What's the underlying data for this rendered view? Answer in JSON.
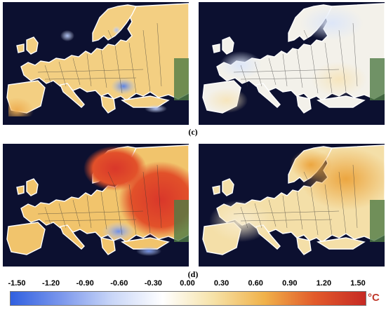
{
  "panels": {
    "c": {
      "label": "(c)",
      "left": {
        "scheme": "mixed-warm-with-cool-spots",
        "sea_color": "#0c1030",
        "land_color": "#f3cf82"
      },
      "right": {
        "scheme": "near-neutral-cool",
        "sea_color": "#0c1030",
        "land_color": "#f2f1ec"
      }
    },
    "d": {
      "label": "(d)",
      "left": {
        "scheme": "strong-warm-northeast",
        "sea_color": "#0c1030",
        "land_color": "#f0c060"
      },
      "right": {
        "scheme": "moderate-warm-northeast",
        "sea_color": "#0c1030",
        "land_color": "#f4dfa8"
      }
    }
  },
  "colorbar": {
    "ticks": [
      "-1.50",
      "-1.20",
      "-0.90",
      "-0.60",
      "-0.30",
      "0.00",
      "0.30",
      "0.60",
      "0.90",
      "1.20",
      "1.50"
    ],
    "unit": "°C",
    "range": [
      -1.5,
      1.5
    ],
    "colors": [
      "#3060e0",
      "#7b97ec",
      "#c9d6f7",
      "#ffffff",
      "#f6e2a8",
      "#f0b24a",
      "#e25a2a",
      "#c62a24"
    ]
  }
}
